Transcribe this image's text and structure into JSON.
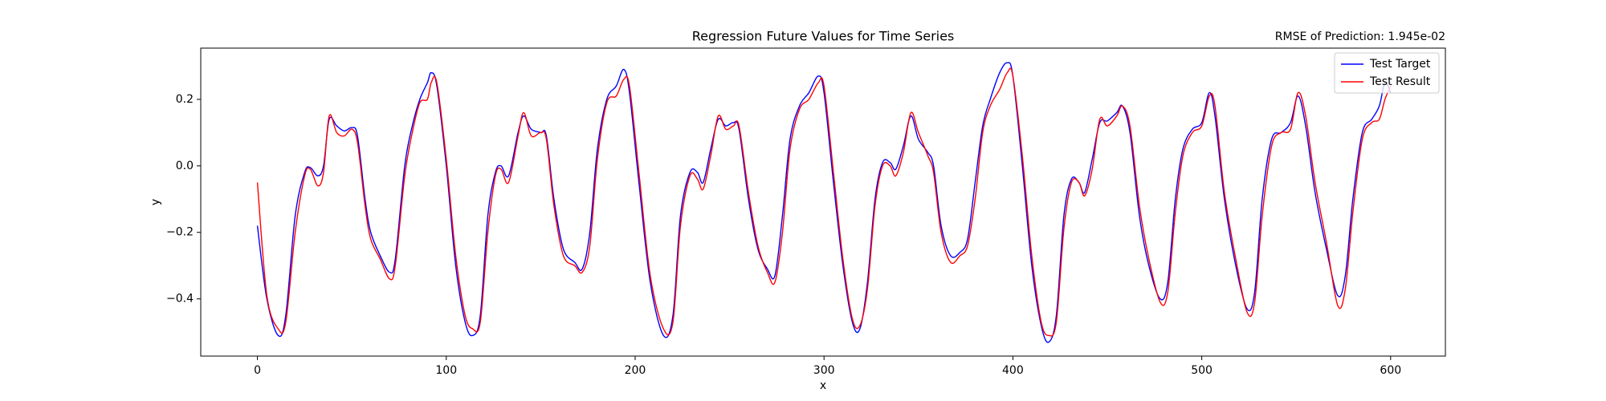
{
  "chart_data": {
    "type": "line",
    "title": "Regression Future Values for Time Series",
    "annotation": "RMSE of Prediction: 1.945e-02",
    "x_label": "x",
    "y_label": "y",
    "x": [
      0,
      5,
      11,
      15,
      20,
      25,
      28,
      32,
      35,
      38,
      42,
      46,
      50,
      53,
      57,
      60,
      65,
      70,
      73,
      78,
      82,
      86,
      90,
      92,
      95,
      100,
      105,
      110,
      114,
      118,
      122,
      126,
      129,
      133,
      138,
      141,
      145,
      150,
      153,
      157,
      162,
      168,
      172,
      176,
      180,
      185,
      190,
      194,
      197,
      202,
      208,
      215,
      220,
      224,
      229,
      233,
      236,
      240,
      244,
      248,
      252,
      255,
      260,
      265,
      270,
      274,
      278,
      282,
      287,
      292,
      297,
      300,
      305,
      310,
      315,
      319,
      323,
      327,
      331,
      335,
      338,
      342,
      346,
      350,
      355,
      358,
      362,
      367,
      372,
      376,
      380,
      384,
      388,
      393,
      397,
      400,
      405,
      410,
      415,
      419,
      423,
      427,
      431,
      435,
      438,
      442,
      446,
      450,
      455,
      458,
      462,
      467,
      472,
      478,
      482,
      486,
      490,
      495,
      500,
      504,
      507,
      512,
      518,
      524,
      528,
      532,
      537,
      542,
      547,
      551,
      555,
      560,
      566,
      572,
      576,
      580,
      585,
      590,
      594,
      597,
      600
    ],
    "series": [
      {
        "name": "Test Target",
        "color": "#0000ff",
        "values": [
          -0.18,
          -0.4,
          -0.51,
          -0.45,
          -0.15,
          -0.02,
          -0.005,
          -0.03,
          0.0,
          0.14,
          0.12,
          0.105,
          0.115,
          0.09,
          -0.1,
          -0.2,
          -0.27,
          -0.32,
          -0.28,
          0.0,
          0.12,
          0.2,
          0.25,
          0.28,
          0.24,
          0.0,
          -0.3,
          -0.47,
          -0.51,
          -0.45,
          -0.15,
          -0.02,
          0.0,
          -0.03,
          0.1,
          0.15,
          0.11,
          0.1,
          0.09,
          -0.1,
          -0.25,
          -0.29,
          -0.31,
          -0.2,
          0.05,
          0.2,
          0.24,
          0.29,
          0.22,
          -0.05,
          -0.35,
          -0.51,
          -0.45,
          -0.15,
          -0.02,
          -0.02,
          -0.05,
          0.05,
          0.14,
          0.12,
          0.13,
          0.11,
          -0.1,
          -0.25,
          -0.31,
          -0.33,
          -0.15,
          0.08,
          0.18,
          0.22,
          0.27,
          0.22,
          -0.05,
          -0.3,
          -0.47,
          -0.49,
          -0.35,
          -0.1,
          0.01,
          0.01,
          -0.01,
          0.06,
          0.15,
          0.08,
          0.04,
          0.0,
          -0.18,
          -0.27,
          -0.26,
          -0.22,
          -0.05,
          0.12,
          0.2,
          0.28,
          0.31,
          0.27,
          0.0,
          -0.3,
          -0.48,
          -0.53,
          -0.45,
          -0.15,
          -0.04,
          -0.05,
          -0.08,
          0.02,
          0.13,
          0.135,
          0.16,
          0.18,
          0.1,
          -0.15,
          -0.3,
          -0.4,
          -0.35,
          -0.1,
          0.05,
          0.11,
          0.13,
          0.22,
          0.15,
          -0.1,
          -0.3,
          -0.43,
          -0.38,
          -0.1,
          0.08,
          0.1,
          0.13,
          0.21,
          0.12,
          -0.08,
          -0.25,
          -0.39,
          -0.33,
          -0.1,
          0.1,
          0.14,
          0.18,
          0.25,
          0.22
        ]
      },
      {
        "name": "Test Result",
        "color": "#ff0000",
        "values": [
          -0.05,
          -0.39,
          -0.49,
          -0.47,
          -0.2,
          -0.03,
          -0.01,
          -0.06,
          -0.02,
          0.15,
          0.1,
          0.09,
          0.11,
          0.07,
          -0.12,
          -0.22,
          -0.28,
          -0.34,
          -0.3,
          -0.03,
          0.1,
          0.19,
          0.2,
          0.25,
          0.25,
          0.02,
          -0.27,
          -0.45,
          -0.49,
          -0.47,
          -0.2,
          -0.03,
          -0.01,
          -0.05,
          0.09,
          0.16,
          0.09,
          0.1,
          0.08,
          -0.12,
          -0.27,
          -0.3,
          -0.32,
          -0.24,
          0.02,
          0.19,
          0.21,
          0.26,
          0.24,
          -0.02,
          -0.33,
          -0.49,
          -0.47,
          -0.18,
          -0.03,
          -0.04,
          -0.07,
          0.03,
          0.15,
          0.11,
          0.12,
          0.12,
          -0.08,
          -0.24,
          -0.32,
          -0.35,
          -0.2,
          0.05,
          0.17,
          0.2,
          0.25,
          0.24,
          -0.02,
          -0.28,
          -0.46,
          -0.48,
          -0.37,
          -0.12,
          0.0,
          0.0,
          -0.03,
          0.04,
          0.16,
          0.1,
          0.03,
          -0.02,
          -0.2,
          -0.29,
          -0.27,
          -0.24,
          -0.1,
          0.1,
          0.18,
          0.23,
          0.28,
          0.27,
          0.03,
          -0.27,
          -0.47,
          -0.51,
          -0.47,
          -0.19,
          -0.05,
          -0.05,
          -0.09,
          -0.01,
          0.14,
          0.12,
          0.15,
          0.18,
          0.12,
          -0.12,
          -0.28,
          -0.41,
          -0.38,
          -0.14,
          0.03,
          0.1,
          0.12,
          0.21,
          0.18,
          -0.08,
          -0.28,
          -0.44,
          -0.41,
          -0.15,
          0.06,
          0.1,
          0.11,
          0.22,
          0.15,
          -0.05,
          -0.23,
          -0.42,
          -0.37,
          -0.14,
          0.08,
          0.13,
          0.14,
          0.2,
          0.24
        ]
      }
    ],
    "xlim": [
      -30,
      629
    ],
    "ylim": [
      -0.572,
      0.354
    ],
    "xticks": [
      0,
      100,
      200,
      300,
      400,
      500,
      600
    ],
    "yticks": [
      {
        "value": -0.4,
        "label": "−0.4"
      },
      {
        "value": -0.2,
        "label": "−0.2"
      },
      {
        "value": 0,
        "label": "0.0"
      },
      {
        "value": 0.2,
        "label": "0.2"
      }
    ],
    "grid": false,
    "legend": "upper right"
  }
}
